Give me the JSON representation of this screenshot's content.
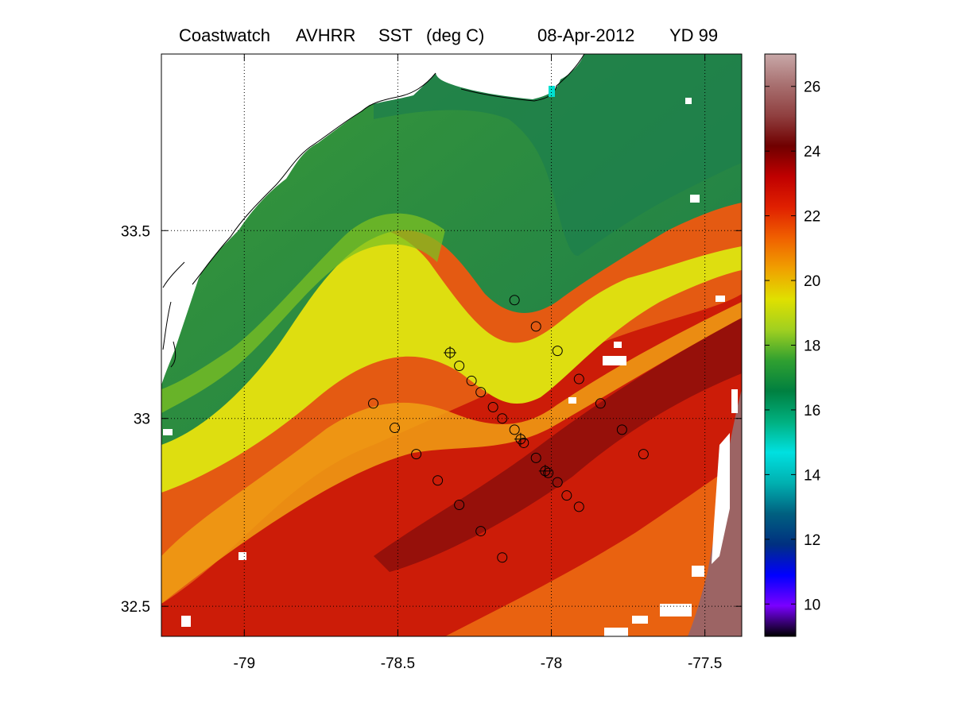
{
  "chart_data": {
    "type": "heatmap",
    "title_parts": [
      "Coastwatch",
      "AVHRR",
      "SST",
      "(deg C)",
      "08-Apr-2012",
      "YD 99"
    ],
    "x_ticks": [
      -79,
      -78.5,
      -78,
      -77.5
    ],
    "x_tick_labels": [
      "-79",
      "-78.5",
      "-78",
      "-77.5"
    ],
    "y_ticks": [
      33.5,
      33,
      32.5
    ],
    "y_tick_labels": [
      "33.5",
      "33",
      "32.5"
    ],
    "xlim": [
      -79.27,
      -77.38
    ],
    "ylim": [
      32.42,
      33.97
    ],
    "colorbar": {
      "ticks": [
        26,
        24,
        22,
        20,
        18,
        16,
        14,
        12,
        10
      ],
      "tick_labels": [
        "26",
        "24",
        "22",
        "20",
        "18",
        "16",
        "14",
        "12",
        "10"
      ],
      "range": [
        9,
        27
      ],
      "colors": [
        "#000000",
        "#7a00ff",
        "#0000ff",
        "#003080",
        "#006080",
        "#00b0b0",
        "#00e0e0",
        "#00b080",
        "#008040",
        "#30a030",
        "#a0d020",
        "#e0e000",
        "#f0a000",
        "#f06000",
        "#e02000",
        "#c00000",
        "#700000",
        "#904040",
        "#a87070",
        "#c8a8a8"
      ]
    },
    "grid": "dotted",
    "colors": {
      "land": "#ffffff",
      "cold_shelf": "#1f8a43",
      "green": "#4aa032",
      "yellow": "#d8dc0c",
      "orange": "#ec6a10",
      "red": "#cc1a08",
      "dark_red": "#8a0a0a",
      "gulf_stream_warm": "#9c6464"
    },
    "stations": [
      {
        "lon": -78.33,
        "lat": 33.175,
        "marker": "circle-plus"
      },
      {
        "lon": -78.3,
        "lat": 33.14,
        "marker": "circle"
      },
      {
        "lon": -78.26,
        "lat": 33.1,
        "marker": "circle"
      },
      {
        "lon": -78.23,
        "lat": 33.07,
        "marker": "circle"
      },
      {
        "lon": -78.19,
        "lat": 33.03,
        "marker": "circle"
      },
      {
        "lon": -78.16,
        "lat": 33.0,
        "marker": "circle"
      },
      {
        "lon": -78.12,
        "lat": 32.97,
        "marker": "circle"
      },
      {
        "lon": -78.1,
        "lat": 32.945,
        "marker": "circle-plus"
      },
      {
        "lon": -78.09,
        "lat": 32.935,
        "marker": "circle"
      },
      {
        "lon": -78.05,
        "lat": 32.895,
        "marker": "circle"
      },
      {
        "lon": -78.02,
        "lat": 32.86,
        "marker": "circle-plus"
      },
      {
        "lon": -78.01,
        "lat": 32.855,
        "marker": "circle"
      },
      {
        "lon": -77.98,
        "lat": 32.83,
        "marker": "circle"
      },
      {
        "lon": -77.95,
        "lat": 32.795,
        "marker": "circle"
      },
      {
        "lon": -77.91,
        "lat": 32.765,
        "marker": "circle"
      },
      {
        "lon": -78.12,
        "lat": 33.315,
        "marker": "circle"
      },
      {
        "lon": -78.05,
        "lat": 33.245,
        "marker": "circle"
      },
      {
        "lon": -77.98,
        "lat": 33.18,
        "marker": "circle"
      },
      {
        "lon": -77.91,
        "lat": 33.105,
        "marker": "circle"
      },
      {
        "lon": -77.84,
        "lat": 33.04,
        "marker": "circle"
      },
      {
        "lon": -77.77,
        "lat": 32.97,
        "marker": "circle"
      },
      {
        "lon": -77.7,
        "lat": 32.905,
        "marker": "circle"
      },
      {
        "lon": -78.58,
        "lat": 33.04,
        "marker": "circle"
      },
      {
        "lon": -78.51,
        "lat": 32.975,
        "marker": "circle"
      },
      {
        "lon": -78.44,
        "lat": 32.905,
        "marker": "circle"
      },
      {
        "lon": -78.37,
        "lat": 32.835,
        "marker": "circle"
      },
      {
        "lon": -78.3,
        "lat": 32.77,
        "marker": "circle"
      },
      {
        "lon": -78.23,
        "lat": 32.7,
        "marker": "circle"
      },
      {
        "lon": -78.16,
        "lat": 32.63,
        "marker": "circle"
      }
    ]
  }
}
